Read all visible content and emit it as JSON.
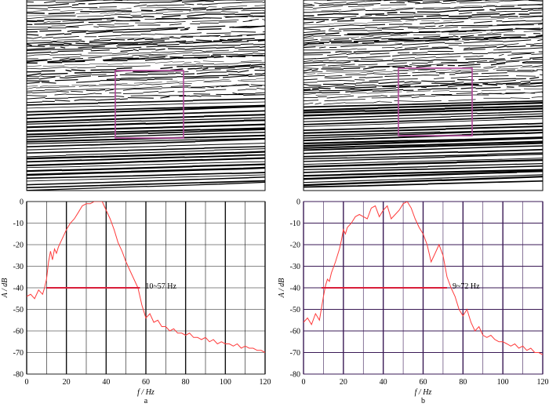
{
  "colors": {
    "curve": "#ff3b3b",
    "band": "#d81e3a",
    "box": "#b0479a",
    "grid_a": "#111111",
    "grid_b": "#3a1a55",
    "seismic_ink": "#000000"
  },
  "chart_data": [
    {
      "type": "line",
      "panel_label": "a",
      "xlabel": "f / Hz",
      "ylabel": "A / dB",
      "xlim": [
        0,
        120
      ],
      "ylim": [
        -80,
        0
      ],
      "x_ticks": [
        0,
        20,
        40,
        60,
        80,
        100,
        120
      ],
      "y_ticks": [
        0,
        -10,
        -20,
        -30,
        -40,
        -50,
        -60,
        -70,
        -80
      ],
      "grid": true,
      "band": {
        "label": "10~57 Hz",
        "x_start": 10,
        "x_end": 57,
        "level": -40
      },
      "series": [
        {
          "x": [
            0,
            2,
            4,
            6,
            8,
            9,
            10,
            11,
            12,
            13,
            14,
            15,
            16,
            18,
            20,
            22,
            24,
            26,
            28,
            30,
            32,
            34,
            36,
            38,
            40,
            42,
            44,
            46,
            48,
            50,
            52,
            54,
            56,
            58,
            60,
            62,
            64,
            66,
            68,
            70,
            72,
            74,
            76,
            78,
            80,
            82,
            84,
            86,
            88,
            90,
            92,
            94,
            96,
            98,
            100,
            102,
            104,
            106,
            108,
            110,
            112,
            114,
            116,
            118,
            120
          ],
          "y": [
            -44,
            -43,
            -45,
            -41,
            -43,
            -40,
            -36,
            -28,
            -23,
            -27,
            -22,
            -24,
            -21,
            -17,
            -13,
            -10,
            -8,
            -5,
            -2,
            -1,
            -1,
            0,
            0,
            0,
            -4,
            -8,
            -13,
            -19,
            -23,
            -28,
            -32,
            -36,
            -40,
            -48,
            -54,
            -52,
            -56,
            -55,
            -58,
            -58,
            -60,
            -59,
            -61,
            -61,
            -62,
            -61,
            -63,
            -63,
            -64,
            -63,
            -65,
            -64,
            -66,
            -65,
            -66,
            -66,
            -67,
            -66,
            -68,
            -67,
            -68,
            -68,
            -69,
            -69,
            -70
          ]
        }
      ]
    },
    {
      "type": "line",
      "panel_label": "b",
      "xlabel": "f / Hz",
      "ylabel": "A / dB",
      "xlim": [
        0,
        120
      ],
      "ylim": [
        -80,
        0
      ],
      "x_ticks": [
        0,
        20,
        40,
        60,
        80,
        100,
        120
      ],
      "y_ticks": [
        0,
        -10,
        -20,
        -30,
        -40,
        -50,
        -60,
        -70,
        -80
      ],
      "grid": true,
      "band": {
        "label": "9~72 Hz",
        "x_start": 9,
        "x_end": 72,
        "level": -40
      },
      "series": [
        {
          "x": [
            0,
            2,
            4,
            6,
            8,
            10,
            11,
            12,
            13,
            14,
            16,
            18,
            19,
            20,
            21,
            22,
            24,
            26,
            28,
            30,
            32,
            34,
            36,
            38,
            40,
            42,
            44,
            46,
            48,
            50,
            52,
            54,
            56,
            58,
            60,
            62,
            64,
            66,
            68,
            70,
            72,
            74,
            76,
            78,
            80,
            82,
            84,
            86,
            88,
            90,
            92,
            94,
            96,
            98,
            100,
            102,
            104,
            106,
            108,
            110,
            112,
            114,
            116,
            118,
            120
          ],
          "y": [
            -56,
            -54,
            -57,
            -52,
            -55,
            -44,
            -39,
            -36,
            -37,
            -33,
            -28,
            -22,
            -18,
            -13,
            -15,
            -12,
            -10,
            -7,
            -6,
            -7,
            -8,
            -3,
            -2,
            -7,
            -4,
            -2,
            -8,
            -6,
            -4,
            -1,
            0,
            -3,
            -8,
            -12,
            -15,
            -20,
            -28,
            -24,
            -20,
            -25,
            -35,
            -40,
            -44,
            -50,
            -53,
            -50,
            -56,
            -60,
            -58,
            -62,
            -63,
            -62,
            -64,
            -65,
            -65,
            -66,
            -67,
            -66,
            -68,
            -67,
            -69,
            -68,
            -70,
            -70,
            -71
          ]
        }
      ]
    }
  ]
}
